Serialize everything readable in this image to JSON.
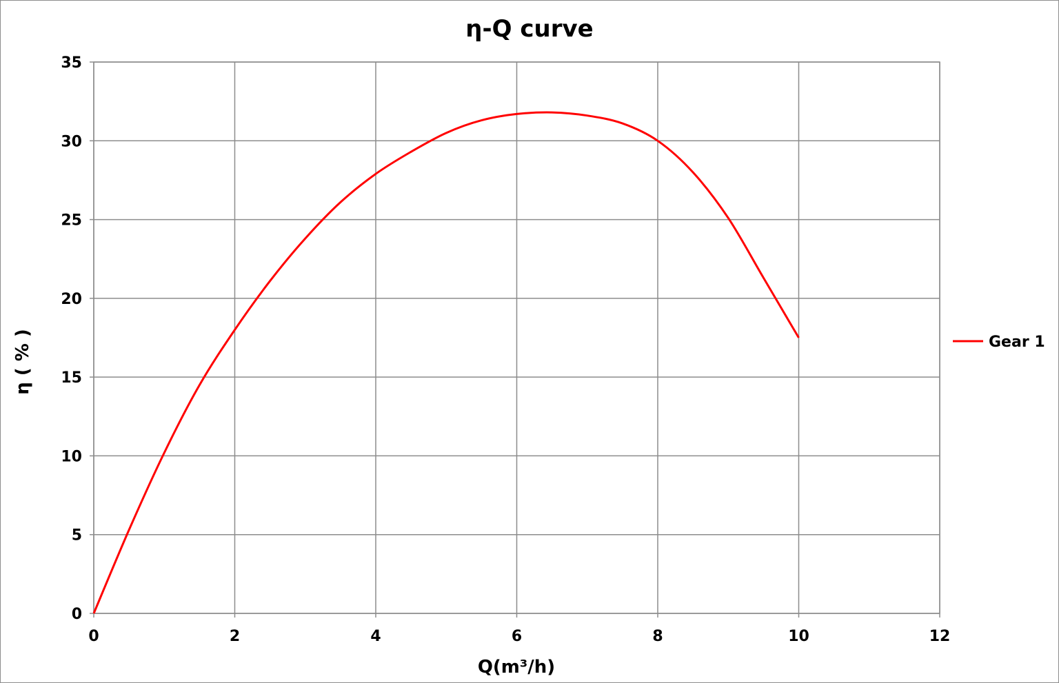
{
  "chart_data": {
    "type": "line",
    "title": "η-Q  curve",
    "xlabel": "Q(m³/h)",
    "ylabel": "η ( % )",
    "xlim": [
      0,
      12
    ],
    "ylim": [
      0,
      35
    ],
    "x_ticks": [
      0,
      2,
      4,
      6,
      8,
      10,
      12
    ],
    "y_ticks": [
      0,
      5,
      10,
      15,
      20,
      25,
      30,
      35
    ],
    "grid": true,
    "legend_position": "right",
    "series": [
      {
        "name": "Gear 1",
        "color": "#ff0000",
        "x": [
          0,
          0.5,
          1,
          1.5,
          2,
          2.5,
          3,
          3.5,
          4,
          4.5,
          5,
          5.5,
          6,
          6.5,
          7,
          7.5,
          8,
          8.5,
          9,
          9.5,
          10
        ],
        "y": [
          0,
          5.3,
          10.2,
          14.5,
          18.0,
          21.1,
          23.8,
          26.1,
          27.9,
          29.3,
          30.5,
          31.3,
          31.7,
          31.8,
          31.6,
          31.1,
          30.0,
          28.0,
          25.1,
          21.3,
          17.5
        ]
      }
    ]
  }
}
